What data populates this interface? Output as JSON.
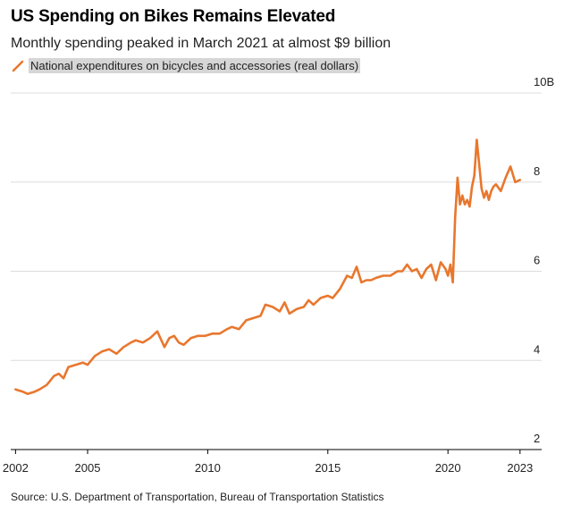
{
  "chart_data": {
    "type": "line",
    "title": "US Spending on Bikes Remains Elevated",
    "subtitle": "Monthly spending peaked in March 2021 at almost $9 billion",
    "xlabel": "",
    "ylabel": "",
    "xlim": [
      2001.8,
      2023.9
    ],
    "ylim": [
      2,
      10
    ],
    "x_ticks": [
      2002,
      2005,
      2010,
      2015,
      2020,
      2023
    ],
    "y_ticks": [
      {
        "value": 2,
        "label": "2"
      },
      {
        "value": 4,
        "label": "4"
      },
      {
        "value": 6,
        "label": "6"
      },
      {
        "value": 8,
        "label": "8"
      },
      {
        "value": 10,
        "label": "10B"
      }
    ],
    "grid": "horizontal",
    "legend": "top-left",
    "colors": {
      "line": "#e8772e",
      "grid": "#dcdcdc",
      "axis": "#000000"
    },
    "series": [
      {
        "name": "National expenditures on bicycles and accessories (real dollars)",
        "x": [
          2002.0,
          2002.3,
          2002.5,
          2002.8,
          2003.0,
          2003.3,
          2003.6,
          2003.8,
          2004.0,
          2004.2,
          2004.5,
          2004.8,
          2005.0,
          2005.3,
          2005.6,
          2005.9,
          2006.2,
          2006.5,
          2006.8,
          2007.0,
          2007.3,
          2007.6,
          2007.9,
          2008.2,
          2008.4,
          2008.6,
          2008.8,
          2009.0,
          2009.3,
          2009.6,
          2009.9,
          2010.2,
          2010.5,
          2010.8,
          2011.0,
          2011.3,
          2011.6,
          2011.9,
          2012.2,
          2012.4,
          2012.7,
          2013.0,
          2013.2,
          2013.4,
          2013.7,
          2014.0,
          2014.2,
          2014.4,
          2014.7,
          2015.0,
          2015.2,
          2015.5,
          2015.8,
          2016.0,
          2016.2,
          2016.4,
          2016.6,
          2016.8,
          2017.0,
          2017.3,
          2017.6,
          2017.9,
          2018.1,
          2018.3,
          2018.5,
          2018.7,
          2018.9,
          2019.1,
          2019.3,
          2019.5,
          2019.7,
          2019.9,
          2020.0,
          2020.1,
          2020.2,
          2020.3,
          2020.4,
          2020.5,
          2020.6,
          2020.7,
          2020.8,
          2020.9,
          2021.0,
          2021.1,
          2021.2,
          2021.3,
          2021.4,
          2021.5,
          2021.6,
          2021.7,
          2021.8,
          2021.9,
          2022.0,
          2022.2,
          2022.4,
          2022.6,
          2022.8,
          2023.0
        ],
        "values": [
          3.35,
          3.3,
          3.25,
          3.3,
          3.35,
          3.45,
          3.65,
          3.7,
          3.6,
          3.85,
          3.9,
          3.95,
          3.9,
          4.1,
          4.2,
          4.25,
          4.15,
          4.3,
          4.4,
          4.45,
          4.4,
          4.5,
          4.65,
          4.3,
          4.5,
          4.55,
          4.4,
          4.35,
          4.5,
          4.55,
          4.55,
          4.6,
          4.6,
          4.7,
          4.75,
          4.7,
          4.9,
          4.95,
          5.0,
          5.25,
          5.2,
          5.1,
          5.3,
          5.05,
          5.15,
          5.2,
          5.35,
          5.25,
          5.4,
          5.45,
          5.4,
          5.6,
          5.9,
          5.85,
          6.1,
          5.75,
          5.8,
          5.8,
          5.85,
          5.9,
          5.9,
          6.0,
          6.0,
          6.15,
          6.0,
          6.05,
          5.85,
          6.05,
          6.15,
          5.8,
          6.2,
          6.05,
          5.9,
          6.15,
          5.75,
          7.2,
          8.1,
          7.5,
          7.7,
          7.5,
          7.6,
          7.45,
          7.9,
          8.15,
          8.95,
          8.4,
          7.85,
          7.65,
          7.8,
          7.6,
          7.8,
          7.9,
          7.95,
          7.8,
          8.1,
          8.35,
          8.0,
          8.05
        ]
      }
    ]
  },
  "source": "Source: U.S. Department of Transportation, Bureau of Transportation Statistics"
}
